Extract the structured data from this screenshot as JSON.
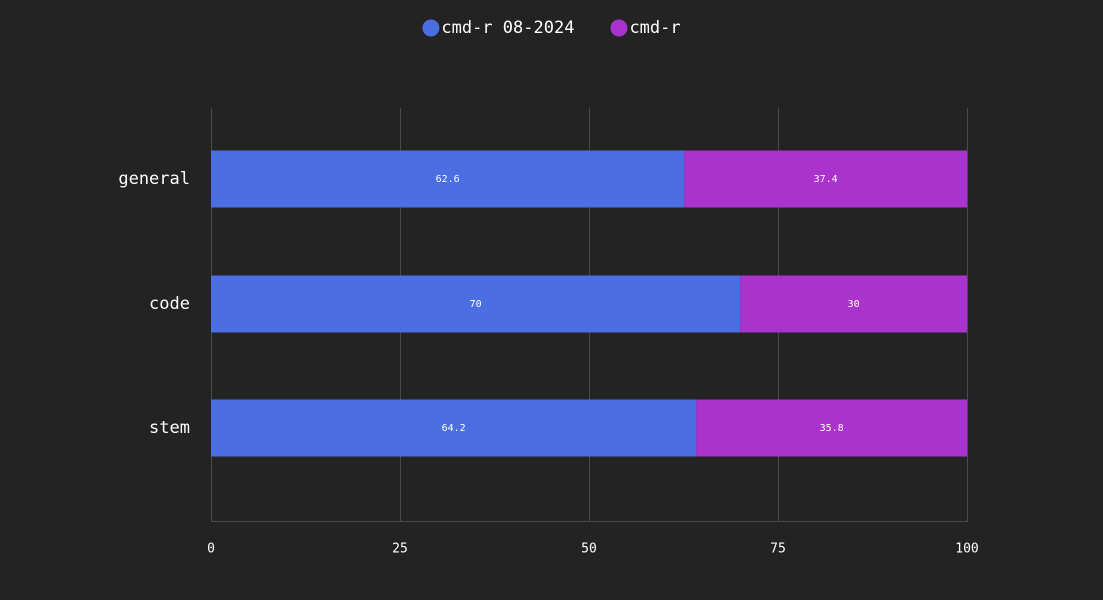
{
  "chart_data": {
    "type": "bar",
    "orientation": "horizontal",
    "stacked": true,
    "categories": [
      "general",
      "code",
      "stem"
    ],
    "series": [
      {
        "name": "cmd-r 08-2024",
        "color": "#4b6fe3",
        "values": [
          62.6,
          70,
          64.2
        ]
      },
      {
        "name": "cmd-r",
        "color": "#a933cc",
        "values": [
          37.4,
          30,
          35.8
        ]
      }
    ],
    "xlim": [
      0,
      100
    ],
    "xticks": [
      0,
      25,
      50,
      75,
      100
    ],
    "grid": true,
    "legend_position": "top-center",
    "title": "",
    "xlabel": "",
    "ylabel": ""
  }
}
